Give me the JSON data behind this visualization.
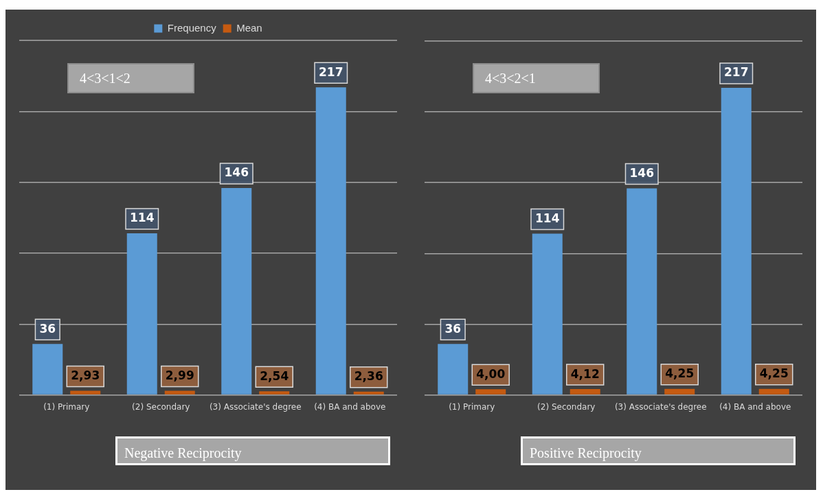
{
  "chart_data": [
    {
      "type": "bar",
      "xlabel": "Negative Reciprocity",
      "annotations": [
        "4<3<1<2"
      ],
      "categories": [
        "(1) Primary",
        "(2) Secondary",
        "(3) Associate's degree",
        "(4) BA and above"
      ],
      "series": [
        {
          "name": "Frequency",
          "color": "#5b9bd5",
          "values": [
            36,
            114,
            146,
            217
          ],
          "value_labels": [
            "36",
            "114",
            "146",
            "217"
          ]
        },
        {
          "name": "Mean",
          "color": "#c55a11",
          "values": [
            2.93,
            2.99,
            2.54,
            2.36
          ],
          "value_labels": [
            "2,93",
            "2,99",
            "2,54",
            "2,36"
          ]
        }
      ],
      "ylim": [
        0,
        250
      ],
      "yticks": [
        {
          "value": 0,
          "label": null
        },
        {
          "value": 50,
          "label": null
        },
        {
          "value": 100,
          "label": null
        },
        {
          "value": 150,
          "label": null
        },
        {
          "value": 200,
          "label": null
        },
        {
          "value": 250,
          "label": null
        }
      ],
      "grid": "y",
      "legend": "top",
      "tick_labels": "x"
    },
    {
      "type": "bar",
      "xlabel": "Positive Reciprocity",
      "annotations": [
        "4<3<2<1"
      ],
      "categories": [
        "(1) Primary",
        "(2) Secondary",
        "(3) Associate's degree",
        "(4) BA and above"
      ],
      "series": [
        {
          "color": "#5b9bd5",
          "values": [
            36,
            114,
            146,
            217
          ],
          "value_labels": [
            "36",
            "114",
            "146",
            "217"
          ]
        },
        {
          "color": "#c55a11",
          "values": [
            4.0,
            4.12,
            4.25,
            4.25
          ],
          "value_labels": [
            "4,00",
            "4,12",
            "4,25",
            "4,25"
          ]
        }
      ],
      "ylim": [
        0,
        250
      ],
      "yticks": [
        {
          "value": 0,
          "label": null
        },
        {
          "value": 50,
          "label": null
        },
        {
          "value": 100,
          "label": null
        },
        {
          "value": 150,
          "label": null
        },
        {
          "value": 200,
          "label": null
        },
        {
          "value": 250,
          "label": null
        }
      ],
      "grid": "y",
      "legend": false,
      "tick_labels": "x"
    }
  ]
}
